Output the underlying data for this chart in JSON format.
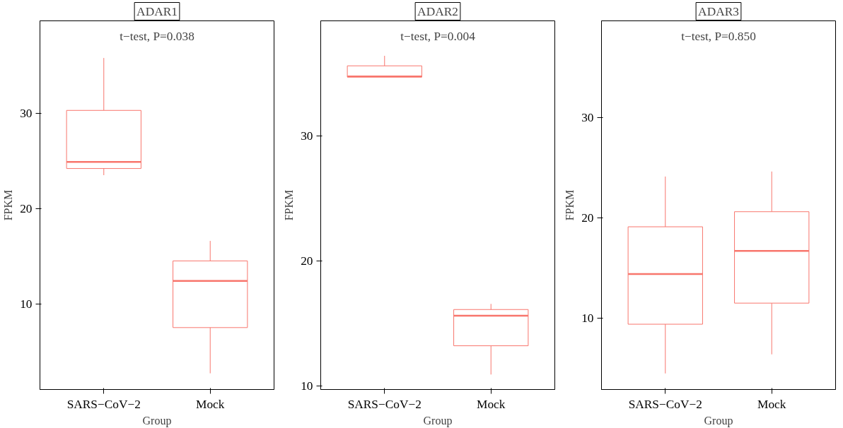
{
  "chart_data": [
    {
      "type": "box",
      "title": "ADAR1",
      "xlabel": "Group",
      "ylabel": "FPKM",
      "categories": [
        "SARS−CoV−2",
        "Mock"
      ],
      "annotations": [
        "t−test, P=0.038"
      ],
      "grid": false,
      "ylim": [
        1.0,
        39.7
      ],
      "yticks": [
        10,
        20,
        30
      ],
      "series": [
        {
          "color": "#f8766d",
          "boxes": [
            {
              "low": 23.5,
              "q1": 24.2,
              "median": 24.9,
              "q3": 30.3,
              "high": 35.8
            },
            {
              "low": 2.7,
              "q1": 7.5,
              "median": 12.4,
              "q3": 14.5,
              "high": 16.6
            }
          ]
        }
      ]
    },
    {
      "type": "box",
      "title": "ADAR2",
      "xlabel": "Group",
      "ylabel": "FPKM",
      "categories": [
        "SARS−CoV−2",
        "Mock"
      ],
      "annotations": [
        "t−test, P=0.004"
      ],
      "grid": false,
      "ylim": [
        9.7,
        39.2
      ],
      "yticks": [
        10,
        20,
        30
      ],
      "series": [
        {
          "color": "#f8766d",
          "boxes": [
            {
              "low": 34.7,
              "q1": 34.7,
              "median": 34.75,
              "q3": 35.6,
              "high": 36.4
            },
            {
              "low": 10.9,
              "q1": 13.2,
              "median": 15.6,
              "q3": 16.1,
              "high": 16.55
            }
          ]
        }
      ]
    },
    {
      "type": "box",
      "title": "ADAR3",
      "xlabel": "Group",
      "ylabel": "FPKM",
      "categories": [
        "SARS−CoV−2",
        "Mock"
      ],
      "annotations": [
        "t−test, P=0.850"
      ],
      "grid": false,
      "ylim": [
        2.9,
        39.6
      ],
      "yticks": [
        10,
        20,
        30
      ],
      "series": [
        {
          "color": "#f8766d",
          "boxes": [
            {
              "low": 4.5,
              "q1": 9.4,
              "median": 14.4,
              "q3": 19.1,
              "high": 24.1
            },
            {
              "low": 6.4,
              "q1": 11.5,
              "median": 16.7,
              "q3": 20.6,
              "high": 24.6
            }
          ]
        }
      ]
    }
  ]
}
